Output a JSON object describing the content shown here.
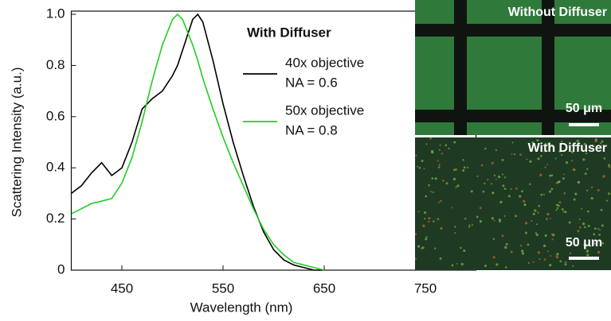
{
  "chart_data": {
    "type": "line",
    "xlabel": "Wavelength (nm)",
    "ylabel": "Scattering Intensity (a.u.)",
    "legend_title": "With Diffuser",
    "x": [
      400,
      410,
      420,
      430,
      440,
      450,
      460,
      470,
      480,
      490,
      500,
      505,
      510,
      520,
      525,
      530,
      540,
      550,
      560,
      570,
      580,
      590,
      600,
      610,
      620,
      630,
      640,
      650
    ],
    "series": [
      {
        "name": [
          "40x objective",
          "NA = 0.6"
        ],
        "color": "#000000",
        "values": [
          0.3,
          0.33,
          0.38,
          0.42,
          0.37,
          0.4,
          0.5,
          0.63,
          0.67,
          0.7,
          0.76,
          0.8,
          0.86,
          0.98,
          1.0,
          0.97,
          0.82,
          0.65,
          0.5,
          0.37,
          0.25,
          0.15,
          0.08,
          0.04,
          0.02,
          0.01,
          0.0,
          0.0
        ]
      },
      {
        "name": [
          "50x objective",
          "NA = 0.8"
        ],
        "color": "#22cc22",
        "values": [
          0.22,
          0.24,
          0.26,
          0.27,
          0.28,
          0.34,
          0.44,
          0.58,
          0.74,
          0.88,
          0.98,
          1.0,
          0.98,
          0.88,
          0.82,
          0.75,
          0.63,
          0.52,
          0.42,
          0.33,
          0.24,
          0.16,
          0.1,
          0.06,
          0.03,
          0.02,
          0.01,
          0.0
        ]
      }
    ],
    "xlim": [
      400,
      800
    ],
    "xticks": [
      450,
      550,
      650,
      750
    ],
    "ylim": [
      0,
      1.0
    ],
    "yticks": [
      0,
      0.2,
      0.4,
      0.6,
      0.8,
      {
        "value": 1.0,
        "label": "1.0"
      }
    ]
  },
  "panels": [
    {
      "title": "Without Diffuser",
      "scale_bar": "50 μm"
    },
    {
      "title": "With Diffuser",
      "scale_bar": "50 μm"
    }
  ]
}
